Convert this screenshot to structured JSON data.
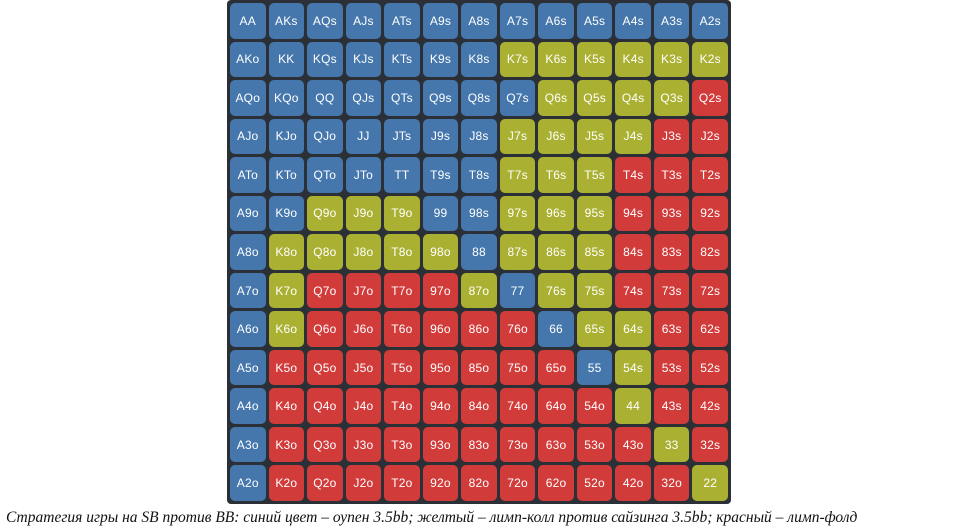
{
  "colors": {
    "B": "#4577ad",
    "Y": "#aab132",
    "R": "#d13c3b"
  },
  "grid": {
    "ranks": [
      "A",
      "K",
      "Q",
      "J",
      "T",
      "9",
      "8",
      "7",
      "6",
      "5",
      "4",
      "3",
      "2"
    ],
    "actions": [
      "BBBBBBBBBBBBB",
      "BBBBBBBYYYYYY",
      "BBBBBBBBYYYYR",
      "BBBBBBBYYYYRR",
      "BBBBBBBYYYRRR",
      "BBYYYBBYYYRRR",
      "BYYYYYBYYYRRR",
      "BYRRRRYBYYRRR",
      "BYRRRRRRBYYRR",
      "BRRRRRRRRBYRR",
      "BRRRRRRRRRYRR",
      "BRRRRRRRRRRYR",
      "BRRRRRRRRRRRY"
    ]
  },
  "caption": "Стратегия игры на SB против BB: синий цвет – оупен 3.5bb; желтый – лимп-колл против сайзинга 3.5bb; красный – лимп-фолд"
}
